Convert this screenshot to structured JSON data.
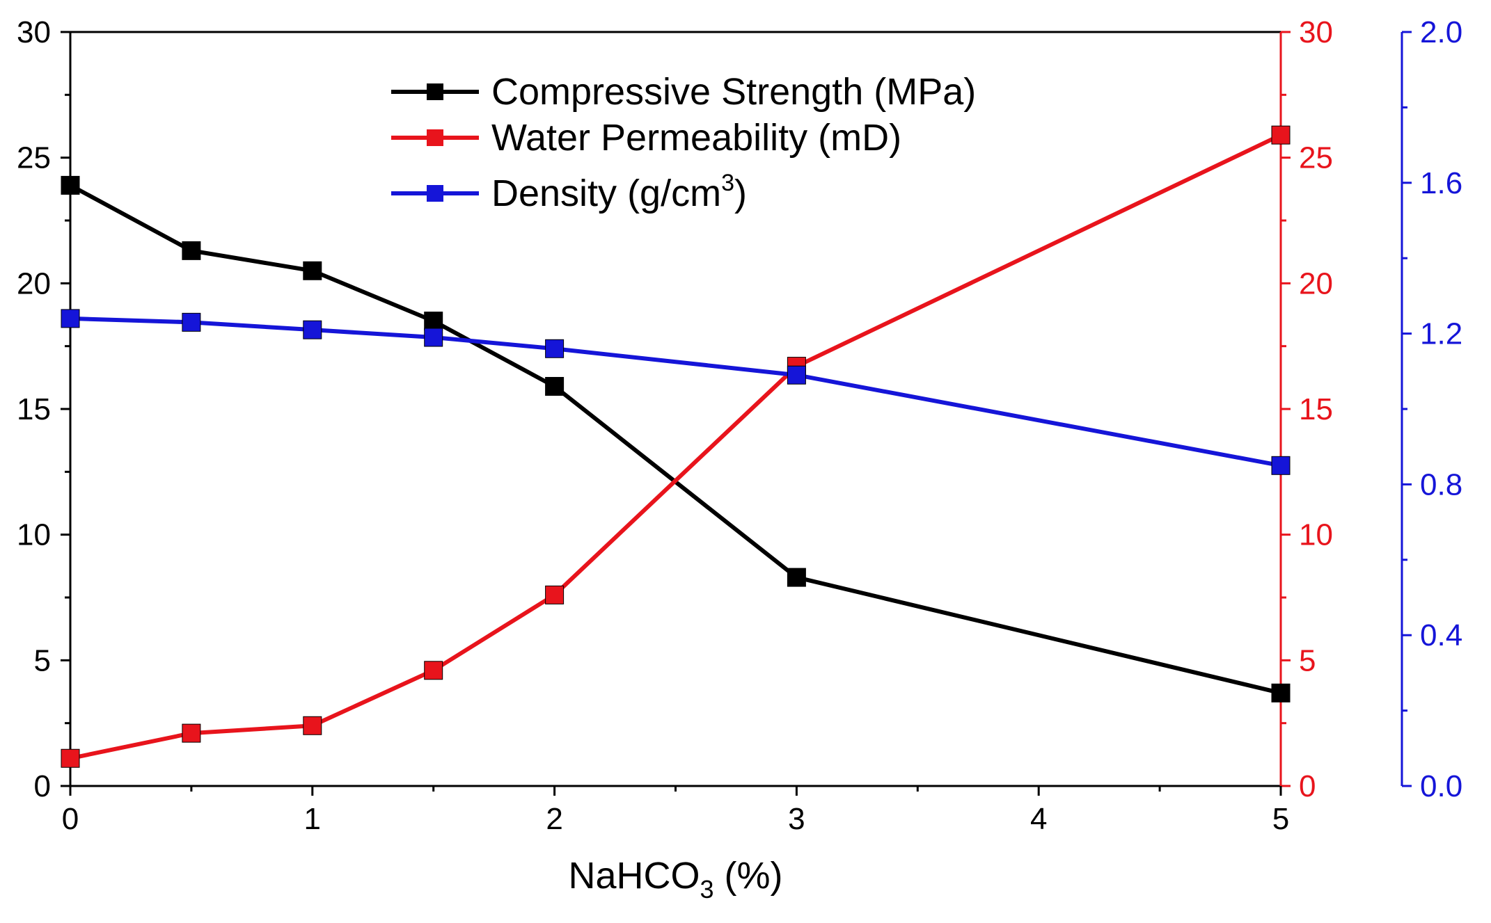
{
  "chart_data": {
    "type": "line",
    "title": "",
    "x": [
      0,
      0.5,
      1,
      1.5,
      2,
      3,
      5
    ],
    "xlim": [
      0,
      5
    ],
    "xticks": [
      0,
      1,
      2,
      3,
      4,
      5
    ],
    "xlabel": {
      "main": "NaHCO",
      "sub": "3",
      "tail": " (%)"
    },
    "axes": {
      "left": {
        "range": [
          0,
          30
        ],
        "ticks": [
          0,
          5,
          10,
          15,
          20,
          25,
          30
        ],
        "color": "#000000"
      },
      "right1": {
        "range": [
          0,
          30
        ],
        "ticks": [
          0,
          5,
          10,
          15,
          20,
          25,
          30
        ],
        "color": "#e8141c"
      },
      "right2": {
        "range": [
          0,
          2.0
        ],
        "ticks": [
          "0.0",
          "0.4",
          "0.8",
          "1.2",
          "1.6",
          "2.0"
        ],
        "color": "#1515d8"
      }
    },
    "series": [
      {
        "name": "Compressive Strength (MPa)",
        "axis": "left",
        "color": "#000000",
        "values": [
          23.9,
          21.3,
          20.5,
          18.5,
          15.9,
          8.3,
          3.7
        ]
      },
      {
        "name": "Water Permeability (mD)",
        "axis": "right1",
        "color": "#e8141c",
        "values": [
          1.1,
          2.1,
          2.4,
          4.6,
          7.6,
          16.7,
          25.9
        ]
      },
      {
        "name": "Density (g/cm3)",
        "axis": "right2",
        "color": "#1515d8",
        "values": [
          1.24,
          1.23,
          1.21,
          1.19,
          1.16,
          1.09,
          0.85
        ]
      }
    ],
    "legend": {
      "position": "top-center",
      "entries": [
        {
          "label": "Compressive Strength (MPa)",
          "color": "#000000"
        },
        {
          "label": "Water Permeability (mD)",
          "color": "#e8141c"
        },
        {
          "label": "Density (g/cm",
          "sup": "3",
          "tail": ")",
          "color": "#1515d8"
        }
      ]
    }
  }
}
